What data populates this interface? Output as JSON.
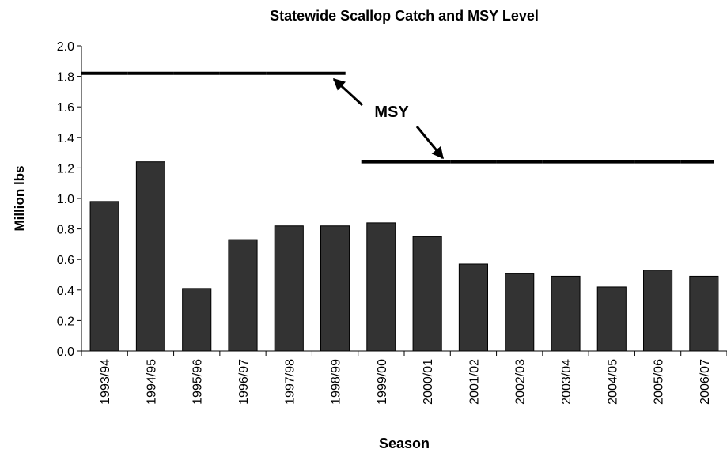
{
  "chart_data": {
    "type": "bar",
    "title": "Statewide Scallop Catch and MSY Level",
    "x_label": "Season",
    "y_label": "Million lbs",
    "annotation": "MSY",
    "categories": [
      "1993/94",
      "1994/95",
      "1995/96",
      "1996/97",
      "1997/98",
      "1998/99",
      "1999/00",
      "2000/01",
      "2001/02",
      "2002/03",
      "2003/04",
      "2004/05",
      "2005/06",
      "2006/07"
    ],
    "series": [
      {
        "type": "bar",
        "color": "#333333",
        "values": [
          0.98,
          1.24,
          0.41,
          0.73,
          0.82,
          0.82,
          0.84,
          0.75,
          0.57,
          0.51,
          0.49,
          0.42,
          0.53,
          0.49
        ]
      },
      {
        "type": "step",
        "color": "#000000",
        "values": [
          1.82,
          1.82,
          1.82,
          1.82,
          1.82,
          1.82,
          1.24,
          1.24,
          1.24,
          1.24,
          1.24,
          1.24,
          1.24,
          1.24
        ]
      }
    ],
    "ylim": [
      0,
      2
    ],
    "yticks": [
      {
        "value": 0,
        "label": "0.0"
      },
      {
        "value": 0.2,
        "label": "0.2"
      },
      {
        "value": 0.4,
        "label": "0.4"
      },
      {
        "value": 0.6,
        "label": "0.6"
      },
      {
        "value": 0.8,
        "label": "0.8"
      },
      {
        "value": 1,
        "label": "1.0"
      },
      {
        "value": 1.2,
        "label": "1.2"
      },
      {
        "value": 1.4,
        "label": "1.4"
      },
      {
        "value": 1.6,
        "label": "1.6"
      },
      {
        "value": 1.8,
        "label": "1.8"
      },
      {
        "value": 2,
        "label": "2.0"
      }
    ],
    "grid": false
  }
}
